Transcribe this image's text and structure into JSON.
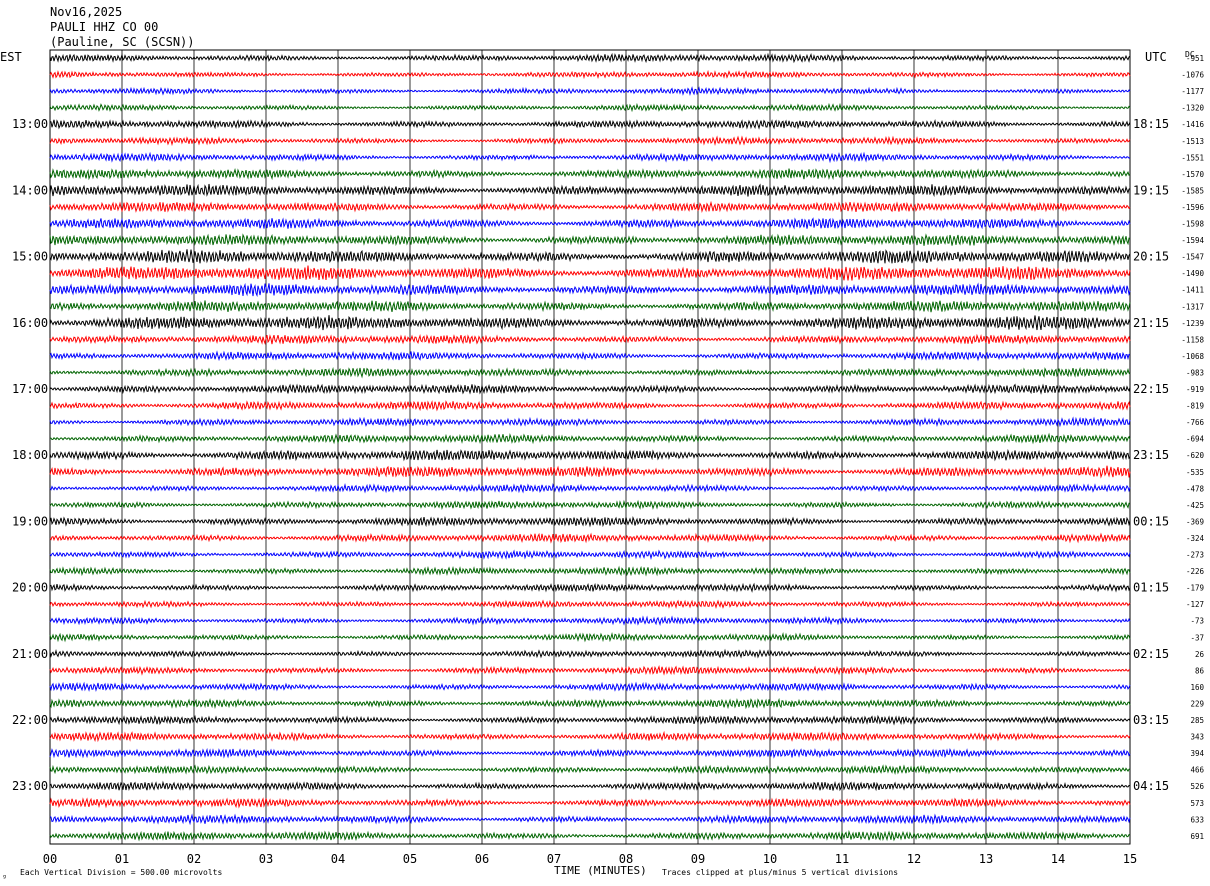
{
  "header": {
    "date": "Nov16,2025",
    "station": "PAULI HHZ CO 00",
    "location": "(Pauline, SC (SCSN))"
  },
  "left_timezone": "EST",
  "right_timezone": "UTC",
  "dc_label": "DC",
  "footer": {
    "scale_note": "Each Vertical Division =  500.00 microvolts",
    "x_title": "TIME (MINUTES)",
    "clip_note": "Traces clipped at plus/minus 5 vertical divisions",
    "corner_mark": "ᵍ"
  },
  "colors": [
    "#000000",
    "#ff0000",
    "#0000ff",
    "#006400"
  ],
  "chart_data": {
    "type": "line",
    "title": "PAULI HHZ CO 00",
    "xlabel": "TIME (MINUTES)",
    "xlim": [
      0,
      15
    ],
    "x_ticks": [
      "00",
      "01",
      "02",
      "03",
      "04",
      "05",
      "06",
      "07",
      "08",
      "09",
      "10",
      "11",
      "12",
      "13",
      "14",
      "15"
    ],
    "left_hour_labels": [
      "13:00",
      "14:00",
      "15:00",
      "16:00",
      "17:00",
      "18:00",
      "19:00",
      "20:00",
      "21:00",
      "22:00",
      "23:00"
    ],
    "right_hour_labels": [
      "18:15",
      "19:15",
      "20:15",
      "21:15",
      "22:15",
      "23:15",
      "00:15",
      "01:15",
      "02:15",
      "03:15",
      "04:15"
    ],
    "dc_offsets": [
      "-951",
      "-1076",
      "-1177",
      "-1320",
      "-1416",
      "-1513",
      "-1551",
      "-1570",
      "-1585",
      "-1596",
      "-1598",
      "-1594",
      "-1547",
      "-1490",
      "-1411",
      "-1317",
      "-1239",
      "-1158",
      "-1068",
      "-983",
      "-919",
      "-819",
      "-766",
      "-694",
      "-620",
      "-535",
      "-478",
      "-425",
      "-369",
      "-324",
      "-273",
      "-226",
      "-179",
      "-127",
      "-73",
      "-37",
      "26",
      "86",
      "160",
      "229",
      "285",
      "343",
      "394",
      "466",
      "526",
      "573",
      "633",
      "691"
    ],
    "activity": [
      1.0,
      0.8,
      0.8,
      0.8,
      1.1,
      0.9,
      1.0,
      1.3,
      1.6,
      1.3,
      1.4,
      1.5,
      1.8,
      1.9,
      1.6,
      1.5,
      1.9,
      1.2,
      1.1,
      1.1,
      1.2,
      1.1,
      1.0,
      1.1,
      1.5,
      1.5,
      1.0,
      1.0,
      1.2,
      1.1,
      1.0,
      1.0,
      1.0,
      0.9,
      0.9,
      0.9,
      0.9,
      1.0,
      1.0,
      1.1,
      1.1,
      1.1,
      1.1,
      1.0,
      1.1,
      1.1,
      1.1,
      1.1
    ]
  }
}
